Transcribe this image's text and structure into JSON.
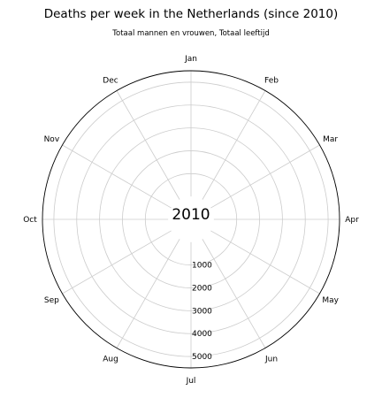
{
  "chart_data": {
    "type": "polar-line",
    "title": "Deaths per week in the Netherlands (since 2010)",
    "subtitle": "Totaal mannen en vrouwen, Totaal leeftijd",
    "center_label": "2010",
    "months": [
      "Jan",
      "Feb",
      "Mar",
      "Apr",
      "May",
      "Jun",
      "Jul",
      "Aug",
      "Sep",
      "Oct",
      "Nov",
      "Dec"
    ],
    "radial_ticks": [
      "1000",
      "2000",
      "3000",
      "4000",
      "5000"
    ],
    "radial_tick_values": [
      1000,
      2000,
      3000,
      4000,
      5000
    ],
    "rlim": [
      -1000,
      5500
    ],
    "grid": true,
    "series": []
  }
}
